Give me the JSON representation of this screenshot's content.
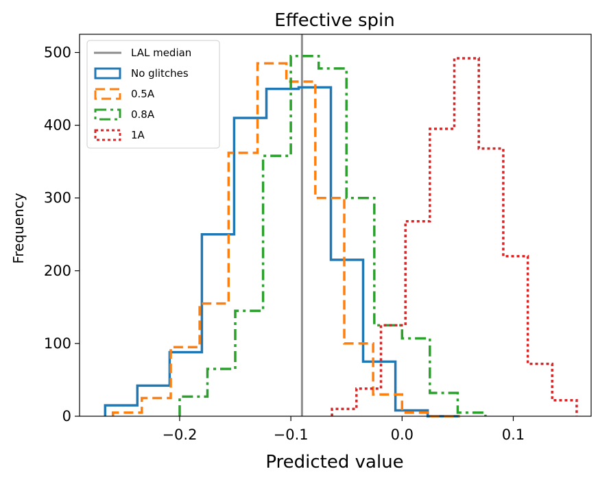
{
  "chart_data": {
    "type": "histogram",
    "title": "Effective spin",
    "xlabel": "Predicted value",
    "ylabel": "Frequency",
    "xlim": [
      -0.29,
      0.17
    ],
    "ylim": [
      0,
      525
    ],
    "xticks": [
      -0.2,
      -0.1,
      0.0,
      0.1
    ],
    "xtick_labels": [
      "−0.2",
      "−0.1",
      "0.0",
      "0.1"
    ],
    "yticks": [
      0,
      100,
      200,
      300,
      400,
      500
    ],
    "ytick_labels": [
      "0",
      "100",
      "200",
      "300",
      "400",
      "500"
    ],
    "median_line": {
      "name": "LAL median",
      "x": -0.09,
      "color": "#8c8c8c"
    },
    "legend_position": "upper-left",
    "series": [
      {
        "name": "No glitches",
        "color": "#1f77b4",
        "style": "solid",
        "edges": [
          -0.267,
          -0.238,
          -0.209,
          -0.18,
          -0.151,
          -0.122,
          -0.093,
          -0.064,
          -0.035,
          -0.006,
          0.023,
          0.052
        ],
        "counts": [
          15,
          42,
          88,
          250,
          410,
          450,
          452,
          215,
          75,
          8,
          0
        ]
      },
      {
        "name": "0.5A",
        "color": "#ff7f0e",
        "style": "dashed",
        "edges": [
          -0.26,
          -0.234,
          -0.208,
          -0.182,
          -0.156,
          -0.13,
          -0.104,
          -0.078,
          -0.052,
          -0.026,
          0.0,
          0.026,
          0.052
        ],
        "counts": [
          5,
          25,
          95,
          155,
          362,
          485,
          460,
          300,
          100,
          30,
          5,
          0
        ]
      },
      {
        "name": "0.8A",
        "color": "#2ca02c",
        "style": "dashdot",
        "edges": [
          -0.2,
          -0.175,
          -0.15,
          -0.125,
          -0.1,
          -0.075,
          -0.05,
          -0.025,
          0.0,
          0.025,
          0.05,
          0.075
        ],
        "counts": [
          27,
          65,
          145,
          358,
          495,
          478,
          300,
          125,
          107,
          32,
          5
        ]
      },
      {
        "name": "1A",
        "color": "#d62728",
        "style": "dotted",
        "edges": [
          -0.063,
          -0.041,
          -0.019,
          0.003,
          0.025,
          0.047,
          0.069,
          0.091,
          0.113,
          0.135,
          0.157
        ],
        "counts": [
          10,
          38,
          125,
          268,
          395,
          492,
          368,
          220,
          72,
          22
        ]
      }
    ]
  }
}
